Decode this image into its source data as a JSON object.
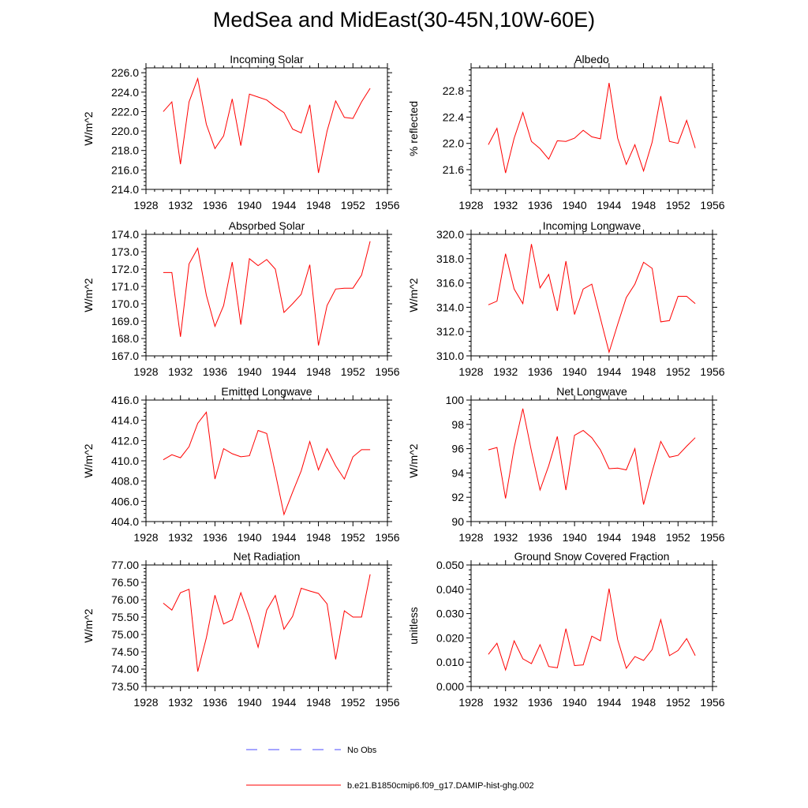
{
  "title": "MedSea and MidEast(30-45N,10W-60E)",
  "colors": {
    "model": "#ff0000",
    "obs": "#0000ff",
    "axis": "#000000"
  },
  "legend": [
    {
      "label": "No Obs",
      "style": "dashed",
      "color": "#0000ff"
    },
    {
      "label": "b.e21.B1850cmip6.f09_g17.DAMIP-hist-ghg.002",
      "style": "solid",
      "color": "#ff0000"
    }
  ],
  "chart_data": [
    {
      "type": "line",
      "title": "Incoming Solar",
      "ylabel": "W/m^2",
      "xlim": [
        1928,
        1956
      ],
      "xticks": [
        1928,
        1932,
        1936,
        1940,
        1944,
        1948,
        1952,
        1956
      ],
      "ylim": [
        214,
        226.5
      ],
      "yticks": [
        "214.0",
        "216.0",
        "218.0",
        "220.0",
        "222.0",
        "224.0",
        "226.0"
      ],
      "x": [
        1930,
        1931,
        1932,
        1933,
        1934,
        1935,
        1936,
        1937,
        1938,
        1939,
        1940,
        1941,
        1942,
        1943,
        1944,
        1945,
        1946,
        1947,
        1948,
        1949,
        1950,
        1951,
        1952,
        1953,
        1954
      ],
      "series": [
        {
          "values": [
            222.0,
            223.0,
            216.6,
            223.0,
            225.4,
            220.7,
            218.2,
            219.5,
            223.3,
            218.5,
            223.8,
            223.5,
            223.2,
            222.5,
            221.9,
            220.2,
            219.8,
            222.7,
            215.7,
            220.0,
            223.1,
            221.4,
            221.3,
            223.0,
            224.4
          ]
        }
      ]
    },
    {
      "type": "line",
      "title": "Albedo",
      "ylabel": "% reflected",
      "xlim": [
        1928,
        1956
      ],
      "xticks": [
        1928,
        1932,
        1936,
        1940,
        1944,
        1948,
        1952,
        1956
      ],
      "ylim": [
        21.3,
        23.15
      ],
      "yticks": [
        "21.6",
        "22.0",
        "22.4",
        "22.8"
      ],
      "x": [
        1930,
        1931,
        1932,
        1933,
        1934,
        1935,
        1936,
        1937,
        1938,
        1939,
        1940,
        1941,
        1942,
        1943,
        1944,
        1945,
        1946,
        1947,
        1948,
        1949,
        1950,
        1951,
        1952,
        1953,
        1954
      ],
      "series": [
        {
          "values": [
            21.98,
            22.23,
            21.55,
            22.08,
            22.47,
            22.03,
            21.92,
            21.76,
            22.04,
            22.03,
            22.08,
            22.2,
            22.1,
            22.07,
            22.92,
            22.08,
            21.68,
            21.98,
            21.58,
            22.02,
            22.72,
            22.03,
            22.0,
            22.35,
            21.93
          ]
        }
      ]
    },
    {
      "type": "line",
      "title": "Absorbed Solar",
      "ylabel": "W/m^2",
      "xlim": [
        1928,
        1956
      ],
      "xticks": [
        1928,
        1932,
        1936,
        1940,
        1944,
        1948,
        1952,
        1956
      ],
      "ylim": [
        167,
        174
      ],
      "yticks": [
        "167.0",
        "168.0",
        "169.0",
        "170.0",
        "171.0",
        "172.0",
        "173.0",
        "174.0"
      ],
      "x": [
        1930,
        1931,
        1932,
        1933,
        1934,
        1935,
        1936,
        1937,
        1938,
        1939,
        1940,
        1941,
        1942,
        1943,
        1944,
        1945,
        1946,
        1947,
        1948,
        1949,
        1950,
        1951,
        1952,
        1953,
        1954
      ],
      "series": [
        {
          "values": [
            171.8,
            171.8,
            168.1,
            172.3,
            173.2,
            170.5,
            168.7,
            169.9,
            172.4,
            168.8,
            172.6,
            172.2,
            172.55,
            172.0,
            169.5,
            170.0,
            170.55,
            172.25,
            167.6,
            169.9,
            170.85,
            170.9,
            170.9,
            171.65,
            173.6
          ]
        }
      ]
    },
    {
      "type": "line",
      "title": "Incoming Longwave",
      "ylabel": "W/m^2",
      "xlim": [
        1928,
        1956
      ],
      "xticks": [
        1928,
        1932,
        1936,
        1940,
        1944,
        1948,
        1952,
        1956
      ],
      "ylim": [
        310,
        320
      ],
      "yticks": [
        "310.0",
        "312.0",
        "314.0",
        "316.0",
        "318.0",
        "320.0"
      ],
      "x": [
        1930,
        1931,
        1932,
        1933,
        1934,
        1935,
        1936,
        1937,
        1938,
        1939,
        1940,
        1941,
        1942,
        1943,
        1944,
        1945,
        1946,
        1947,
        1948,
        1949,
        1950,
        1951,
        1952,
        1953,
        1954
      ],
      "series": [
        {
          "values": [
            314.2,
            314.5,
            318.4,
            315.5,
            314.3,
            319.2,
            315.6,
            316.7,
            313.7,
            317.8,
            313.4,
            315.5,
            315.9,
            313.1,
            310.3,
            312.6,
            314.8,
            315.9,
            317.7,
            317.2,
            312.8,
            312.9,
            314.9,
            314.9,
            314.3
          ]
        }
      ]
    },
    {
      "type": "line",
      "title": "Emitted Longwave",
      "ylabel": "W/m^2",
      "xlim": [
        1928,
        1956
      ],
      "xticks": [
        1928,
        1932,
        1936,
        1940,
        1944,
        1948,
        1952,
        1956
      ],
      "ylim": [
        404,
        416
      ],
      "yticks": [
        "404.0",
        "406.0",
        "408.0",
        "410.0",
        "412.0",
        "414.0",
        "416.0"
      ],
      "x": [
        1930,
        1931,
        1932,
        1933,
        1934,
        1935,
        1936,
        1937,
        1938,
        1939,
        1940,
        1941,
        1942,
        1943,
        1944,
        1945,
        1946,
        1947,
        1948,
        1949,
        1950,
        1951,
        1952,
        1953,
        1954
      ],
      "series": [
        {
          "values": [
            410.1,
            410.6,
            410.3,
            411.4,
            413.7,
            414.8,
            408.2,
            411.2,
            410.7,
            410.4,
            410.5,
            413.0,
            412.7,
            408.8,
            404.7,
            406.9,
            409.0,
            411.9,
            409.1,
            411.2,
            409.5,
            408.2,
            410.4,
            411.1,
            411.1
          ]
        }
      ]
    },
    {
      "type": "line",
      "title": "Net Longwave",
      "ylabel": "W/m^2",
      "xlim": [
        1928,
        1956
      ],
      "xticks": [
        1928,
        1932,
        1936,
        1940,
        1944,
        1948,
        1952,
        1956
      ],
      "ylim": [
        90,
        100
      ],
      "yticks": [
        "90",
        "92",
        "94",
        "96",
        "98",
        "100"
      ],
      "x": [
        1930,
        1931,
        1932,
        1933,
        1934,
        1935,
        1936,
        1937,
        1938,
        1939,
        1940,
        1941,
        1942,
        1943,
        1944,
        1945,
        1946,
        1947,
        1948,
        1949,
        1950,
        1951,
        1952,
        1953,
        1954
      ],
      "series": [
        {
          "values": [
            95.9,
            96.1,
            91.9,
            96.1,
            99.3,
            95.8,
            92.6,
            94.6,
            97.0,
            92.6,
            97.1,
            97.5,
            96.9,
            95.9,
            94.35,
            94.4,
            94.25,
            96.0,
            91.4,
            94.1,
            96.6,
            95.3,
            95.45,
            96.2,
            96.9
          ]
        }
      ]
    },
    {
      "type": "line",
      "title": "Net Radiation",
      "ylabel": "W/m^2",
      "xlim": [
        1928,
        1956
      ],
      "xticks": [
        1928,
        1932,
        1936,
        1940,
        1944,
        1948,
        1952,
        1956
      ],
      "ylim": [
        73.5,
        77
      ],
      "yticks": [
        "73.50",
        "74.00",
        "74.50",
        "75.00",
        "75.50",
        "76.00",
        "76.50",
        "77.00"
      ],
      "x": [
        1930,
        1931,
        1932,
        1933,
        1934,
        1935,
        1936,
        1937,
        1938,
        1939,
        1940,
        1941,
        1942,
        1943,
        1944,
        1945,
        1946,
        1947,
        1948,
        1949,
        1950,
        1951,
        1952,
        1953,
        1954
      ],
      "series": [
        {
          "values": [
            75.9,
            75.7,
            76.2,
            76.3,
            73.93,
            74.9,
            76.13,
            75.3,
            75.42,
            76.2,
            75.5,
            74.63,
            75.7,
            76.12,
            75.15,
            75.52,
            76.33,
            76.25,
            76.18,
            75.88,
            74.28,
            75.68,
            75.5,
            75.5,
            76.73
          ]
        }
      ]
    },
    {
      "type": "line",
      "title": "Ground Snow Covered Fraction",
      "ylabel": "unitless",
      "xlim": [
        1928,
        1956
      ],
      "xticks": [
        1928,
        1932,
        1936,
        1940,
        1944,
        1948,
        1952,
        1956
      ],
      "ylim": [
        0,
        0.05
      ],
      "yticks": [
        "0.000",
        "0.010",
        "0.020",
        "0.030",
        "0.040",
        "0.050"
      ],
      "x": [
        1930,
        1931,
        1932,
        1933,
        1934,
        1935,
        1936,
        1937,
        1938,
        1939,
        1940,
        1941,
        1942,
        1943,
        1944,
        1945,
        1946,
        1947,
        1948,
        1949,
        1950,
        1951,
        1952,
        1953,
        1954
      ],
      "series": [
        {
          "values": [
            0.0132,
            0.0178,
            0.0068,
            0.0188,
            0.0114,
            0.0094,
            0.0172,
            0.0082,
            0.0077,
            0.0238,
            0.0086,
            0.0089,
            0.0207,
            0.0188,
            0.0403,
            0.0193,
            0.0075,
            0.0123,
            0.0107,
            0.0152,
            0.0275,
            0.0127,
            0.0148,
            0.0197,
            0.0127
          ]
        }
      ]
    }
  ]
}
